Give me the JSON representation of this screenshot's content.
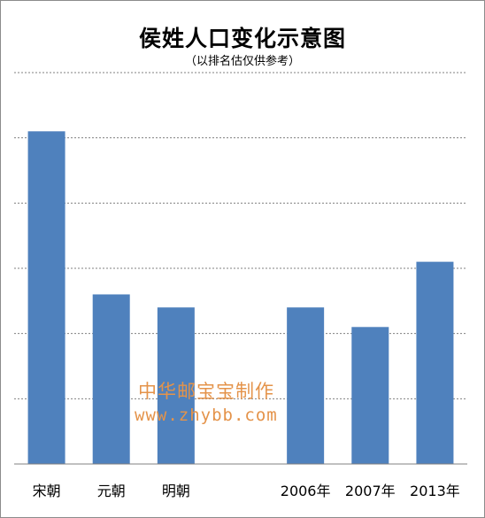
{
  "chart_data": {
    "type": "bar",
    "title": "侯姓人口变化示意图",
    "subtitle": "（以排名估仅供参考）",
    "categories": [
      "宋朝",
      "元朝",
      "明朝",
      "",
      "2006年",
      "2007年",
      "2013年"
    ],
    "values": [
      5.1,
      2.6,
      2.4,
      null,
      2.4,
      2.1,
      3.1
    ],
    "ylim": [
      0,
      6
    ],
    "grid": true,
    "grid_style": "dashed",
    "legend": "none",
    "colors": {
      "bar": "#4f81bd",
      "grid": "#808080",
      "axis": "#808080"
    }
  },
  "watermark": {
    "line1": "中华邮宝宝制作",
    "line2": "www.zhybb.com",
    "color": "#e4934a"
  }
}
